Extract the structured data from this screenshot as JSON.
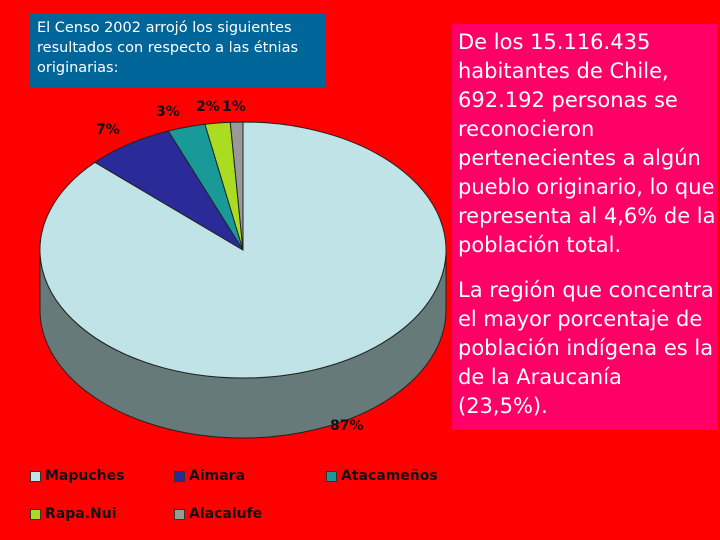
{
  "caption": "El Censo 2002 arrojó los siguientes resultados con respecto a las étnias originarias:",
  "side_text": {
    "p1": "De los 15.116.435 habitantes de Chile, 692.192 personas se reconocieron pertenecientes a algún pueblo originario, lo que representa al 4,6% de la población total.",
    "p2": "La región que concentra el mayor porcentaje de población indígena es la de la Araucanía (23,5%)."
  },
  "chart_data": {
    "type": "pie",
    "title": "",
    "style": "3d",
    "legend_position": "bottom",
    "slices": [
      {
        "name": "Mapuches",
        "value": 87,
        "label": "87%",
        "color": "#bfe3e6"
      },
      {
        "name": "Aimara",
        "value": 7,
        "label": "7%",
        "color": "#2a2a99"
      },
      {
        "name": "Atacameños",
        "value": 3,
        "label": "3%",
        "color": "#1a9999"
      },
      {
        "name": "Rapa.Nui",
        "value": 2,
        "label": "2%",
        "color": "#aadd22"
      },
      {
        "name": "Alacalufe",
        "value": 1,
        "label": "1%",
        "color": "#999999"
      }
    ],
    "legend": [
      "Mapuches",
      "Aimara",
      "Atacameños",
      "Rapa.Nui",
      "Alacalufe"
    ]
  }
}
